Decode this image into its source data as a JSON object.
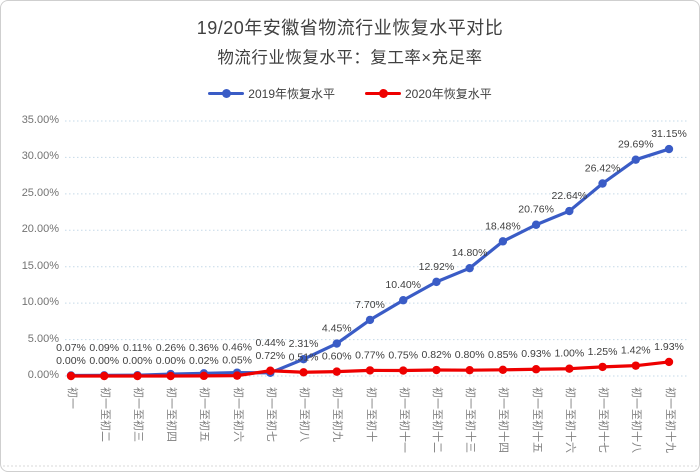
{
  "title": "19/20年安徽省物流行业恢复水平对比",
  "subtitle": "物流行业恢复水平：复工率×充足率",
  "chart_data": {
    "type": "line",
    "categories": [
      "初一",
      "初一至初二",
      "初一至初三",
      "初一至初四",
      "初一至初五",
      "初一至初六",
      "初一至初七",
      "初一至初八",
      "初一至初九",
      "初一至初十",
      "初一至初十一",
      "初一至初十二",
      "初一至初十三",
      "初一至初十四",
      "初一至初十五",
      "初一至初十六",
      "初一至初十七",
      "初一至初十八",
      "初一至初十九"
    ],
    "series": [
      {
        "name": "2019年恢复水平",
        "color": "#3a5cc6",
        "values": [
          0.07,
          0.09,
          0.11,
          0.26,
          0.36,
          0.46,
          0.44,
          2.31,
          4.45,
          7.7,
          10.4,
          12.92,
          14.8,
          18.48,
          20.76,
          22.64,
          26.42,
          29.69,
          31.15
        ]
      },
      {
        "name": "2020年恢复水平",
        "color": "#ee0000",
        "values": [
          0.0,
          0.0,
          0.0,
          0.0,
          0.02,
          0.05,
          0.72,
          0.51,
          0.6,
          0.77,
          0.75,
          0.82,
          0.8,
          0.85,
          0.93,
          1.0,
          1.25,
          1.42,
          1.93
        ]
      }
    ],
    "xlabel": "",
    "ylabel": "",
    "ylim": [
      0,
      35
    ],
    "y_ticks": [
      0,
      5,
      10,
      15,
      20,
      25,
      30,
      35
    ],
    "y_tick_format": "0.00%",
    "grid": "horizontal-dotted",
    "legend_position": "top",
    "data_labels": true,
    "marker": "circle"
  },
  "colors": {
    "title": "#404040",
    "data_label": "#3f3f3f",
    "y_axis_label": "#737373",
    "x_axis_label": "#808080",
    "gridline": "#c5d9e8",
    "border": "#cfcfcf",
    "background": "#ffffff",
    "series_2019": "#3a5cc6",
    "series_2020": "#ee0000"
  }
}
